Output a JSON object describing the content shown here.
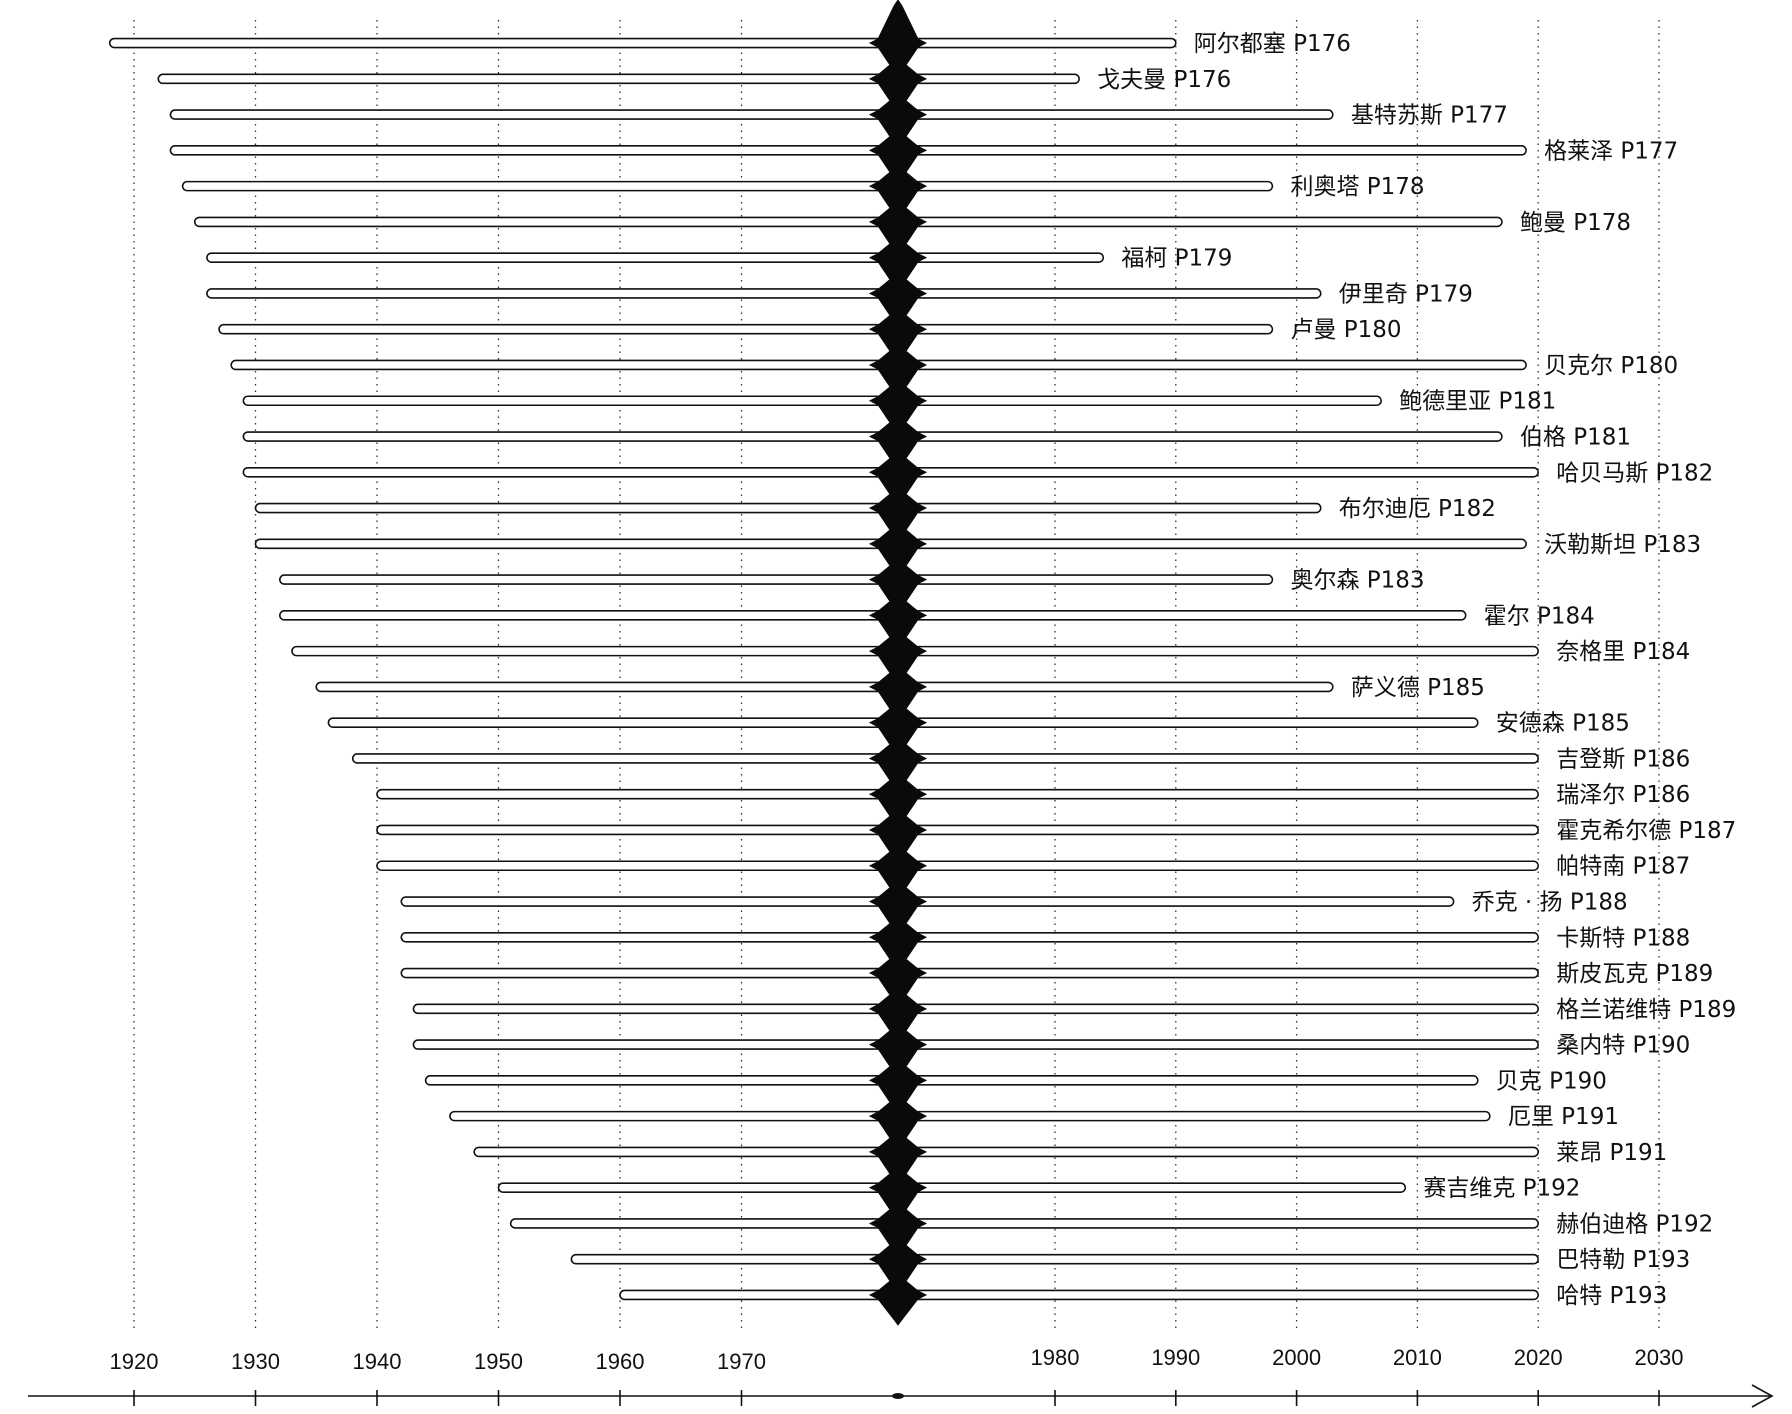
{
  "chart_data": {
    "type": "bar",
    "subtype": "horizontal-floating-timeline",
    "title": "",
    "xlabel": "",
    "ylabel": "",
    "xlim": [
      1916,
      2038
    ],
    "grid": "vertical dotted lines at every labeled decade",
    "axis": {
      "ticks_left": [
        1920,
        1930,
        1940,
        1950,
        1960,
        1970
      ],
      "ticks_right": [
        1980,
        1990,
        2000,
        2010,
        2020,
        2030
      ]
    },
    "series": [
      {
        "label": "阿尔都塞 P176",
        "start": 1918,
        "end": 1990
      },
      {
        "label": "戈夫曼 P176",
        "start": 1922,
        "end": 1982
      },
      {
        "label": "基特苏斯 P177",
        "start": 1923,
        "end": 2003
      },
      {
        "label": "格莱泽 P177",
        "start": 1923,
        "end": 2019
      },
      {
        "label": "利奥塔 P178",
        "start": 1924,
        "end": 1998
      },
      {
        "label": "鲍曼 P178",
        "start": 1925,
        "end": 2017
      },
      {
        "label": "福柯 P179",
        "start": 1926,
        "end": 1984
      },
      {
        "label": "伊里奇 P179",
        "start": 1926,
        "end": 2002
      },
      {
        "label": "卢曼 P180",
        "start": 1927,
        "end": 1998
      },
      {
        "label": "贝克尔 P180",
        "start": 1928,
        "end": 2019
      },
      {
        "label": "鲍德里亚 P181",
        "start": 1929,
        "end": 2007
      },
      {
        "label": "伯格 P181",
        "start": 1929,
        "end": 2017
      },
      {
        "label": "哈贝马斯 P182",
        "start": 1929,
        "end": 2020
      },
      {
        "label": "布尔迪厄 P182",
        "start": 1930,
        "end": 2002
      },
      {
        "label": "沃勒斯坦 P183",
        "start": 1930,
        "end": 2019
      },
      {
        "label": "奥尔森 P183",
        "start": 1932,
        "end": 1998
      },
      {
        "label": "霍尔 P184",
        "start": 1932,
        "end": 2014
      },
      {
        "label": "奈格里 P184",
        "start": 1933,
        "end": 2020
      },
      {
        "label": "萨义德 P185",
        "start": 1935,
        "end": 2003
      },
      {
        "label": "安德森 P185",
        "start": 1936,
        "end": 2015
      },
      {
        "label": "吉登斯 P186",
        "start": 1938,
        "end": 2020
      },
      {
        "label": "瑞泽尔 P186",
        "start": 1940,
        "end": 2020
      },
      {
        "label": "霍克希尔德 P187",
        "start": 1940,
        "end": 2020
      },
      {
        "label": "帕特南 P187",
        "start": 1940,
        "end": 2020
      },
      {
        "label": "乔克 · 扬 P188",
        "start": 1942,
        "end": 2013
      },
      {
        "label": "卡斯特 P188",
        "start": 1942,
        "end": 2020
      },
      {
        "label": "斯皮瓦克 P189",
        "start": 1942,
        "end": 2020
      },
      {
        "label": "格兰诺维特 P189",
        "start": 1943,
        "end": 2020
      },
      {
        "label": "桑内特 P190",
        "start": 1943,
        "end": 2020
      },
      {
        "label": "贝克 P190",
        "start": 1944,
        "end": 2015
      },
      {
        "label": "厄里 P191",
        "start": 1946,
        "end": 2016
      },
      {
        "label": "莱昂 P191",
        "start": 1948,
        "end": 2020
      },
      {
        "label": "赛吉维克 P192",
        "start": 1950,
        "end": 2009
      },
      {
        "label": "赫伯迪格 P192",
        "start": 1951,
        "end": 2020
      },
      {
        "label": "巴特勒 P193",
        "start": 1956,
        "end": 2020
      },
      {
        "label": "哈特 P193",
        "start": 1960,
        "end": 2020
      }
    ]
  }
}
